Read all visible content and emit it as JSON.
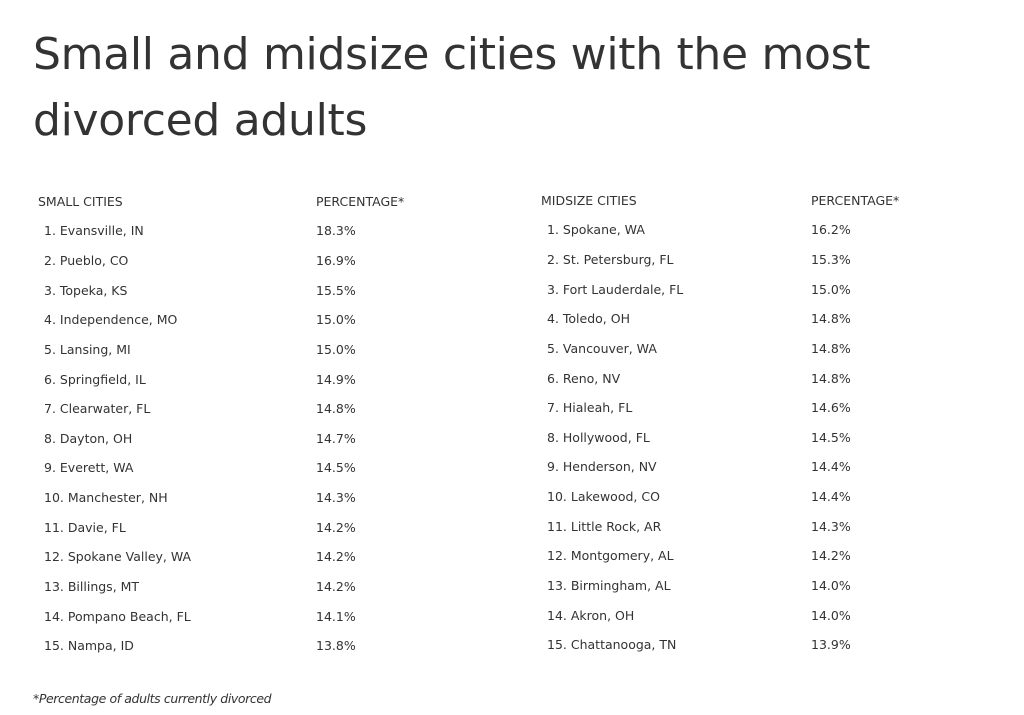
{
  "title": "Small and midsize cities with the most divorced adults",
  "small_table": {
    "header_city": "SMALL CITIES",
    "header_pct": "PERCENTAGE*",
    "rows": [
      {
        "city": "1. Evansville, IN",
        "pct": "18.3%"
      },
      {
        "city": "2. Pueblo, CO",
        "pct": "16.9%"
      },
      {
        "city": "3. Topeka, KS",
        "pct": "15.5%"
      },
      {
        "city": "4. Independence, MO",
        "pct": "15.0%"
      },
      {
        "city": "5. Lansing, MI",
        "pct": "15.0%"
      },
      {
        "city": "6. Springfield, IL",
        "pct": "14.9%"
      },
      {
        "city": "7. Clearwater, FL",
        "pct": "14.8%"
      },
      {
        "city": "8. Dayton, OH",
        "pct": "14.7%"
      },
      {
        "city": "9. Everett, WA",
        "pct": "14.5%"
      },
      {
        "city": "10. Manchester, NH",
        "pct": "14.3%"
      },
      {
        "city": "11. Davie, FL",
        "pct": "14.2%"
      },
      {
        "city": "12. Spokane Valley, WA",
        "pct": "14.2%"
      },
      {
        "city": "13. Billings, MT",
        "pct": "14.2%"
      },
      {
        "city": "14. Pompano Beach, FL",
        "pct": "14.1%"
      },
      {
        "city": "15. Nampa, ID",
        "pct": "13.8%"
      }
    ]
  },
  "midsize_table": {
    "header_city": "MIDSIZE CITIES",
    "header_pct": "PERCENTAGE*",
    "rows": [
      {
        "city": "1. Spokane, WA",
        "pct": "16.2%"
      },
      {
        "city": "2. St. Petersburg, FL",
        "pct": "15.3%"
      },
      {
        "city": "3. Fort Lauderdale, FL",
        "pct": "15.0%"
      },
      {
        "city": "4. Toledo, OH",
        "pct": "14.8%"
      },
      {
        "city": "5. Vancouver, WA",
        "pct": "14.8%"
      },
      {
        "city": "6. Reno, NV",
        "pct": "14.8%"
      },
      {
        "city": "7. Hialeah, FL",
        "pct": "14.6%"
      },
      {
        "city": "8. Hollywood, FL",
        "pct": "14.5%"
      },
      {
        "city": "9. Henderson, NV",
        "pct": "14.4%"
      },
      {
        "city": "10. Lakewood, CO",
        "pct": "14.4%"
      },
      {
        "city": "11. Little Rock, AR",
        "pct": "14.3%"
      },
      {
        "city": "12. Montgomery, AL",
        "pct": "14.2%"
      },
      {
        "city": "13. Birmingham, AL",
        "pct": "14.0%"
      },
      {
        "city": "14. Akron, OH",
        "pct": "14.0%"
      },
      {
        "city": "15. Chattanooga, TN",
        "pct": "13.9%"
      }
    ]
  },
  "footnote": "*Percentage of adults currently divorced"
}
